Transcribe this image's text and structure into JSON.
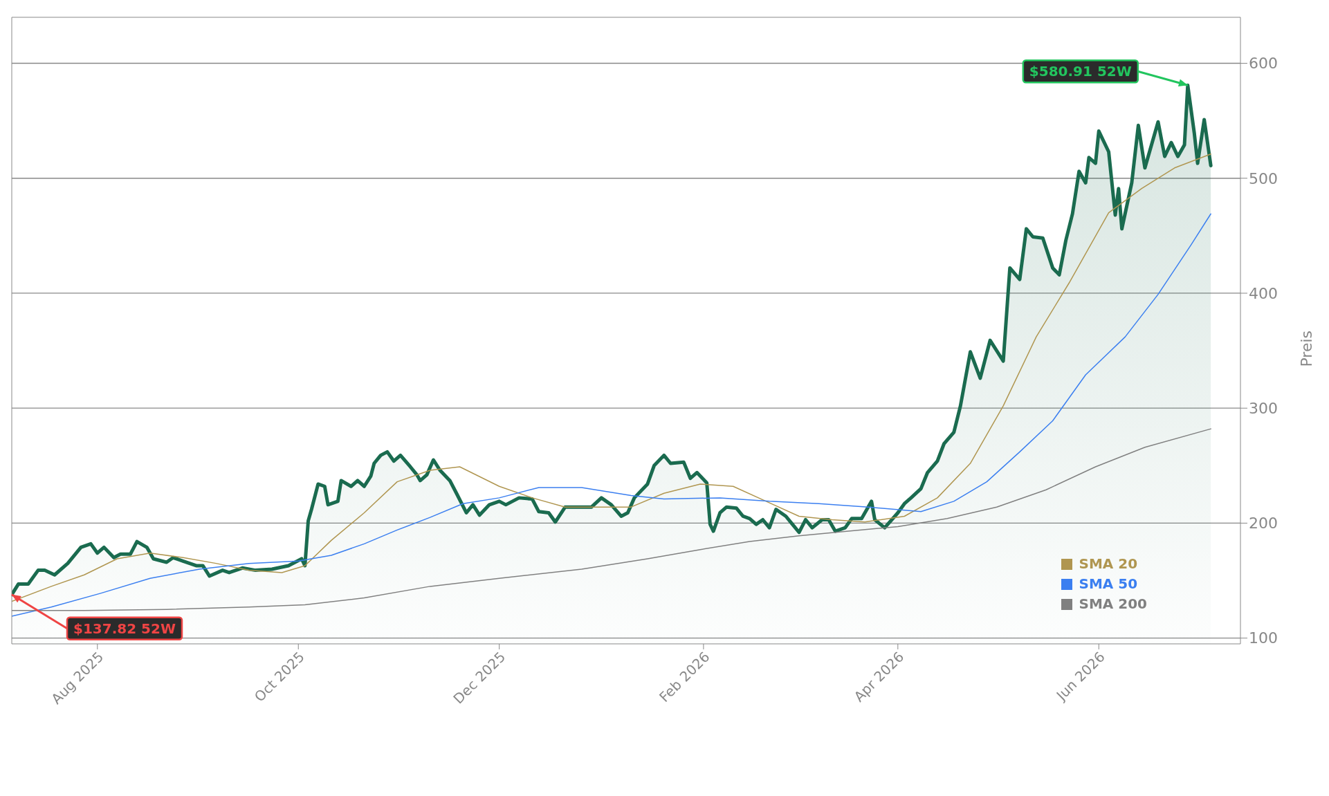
{
  "chart_data": {
    "type": "line",
    "ylabel": "Preis",
    "xlim": [
      "2025-07-06",
      "2026-07-14"
    ],
    "ylim": [
      95,
      640
    ],
    "yticks": [
      100,
      200,
      300,
      400,
      500,
      600
    ],
    "xticks": [
      {
        "value": "2025-08-01",
        "label": "Aug 2025"
      },
      {
        "value": "2025-10-01",
        "label": "Oct 2025"
      },
      {
        "value": "2025-12-01",
        "label": "Dec 2025"
      },
      {
        "value": "2026-02-01",
        "label": "Feb 2026"
      },
      {
        "value": "2026-04-01",
        "label": "Apr 2026"
      },
      {
        "value": "2026-06-01",
        "label": "Jun 2026"
      }
    ],
    "grid": "y",
    "legend": "bottom right",
    "marker": "none",
    "line_style": "solid",
    "annotations": [
      {
        "text": "$580.91 52W",
        "x": "2026-06-28",
        "y": 580.91
      },
      {
        "text": "$137.82 52W",
        "x": "2025-07-06",
        "y": 137.82
      }
    ],
    "series": [
      {
        "type": "area",
        "color": "#1a6b4f",
        "x": [
          "2025-07-06",
          "2025-07-08",
          "2025-07-11",
          "2025-07-14",
          "2025-07-16",
          "2025-07-19",
          "2025-07-23",
          "2025-07-27",
          "2025-07-30",
          "2025-08-01",
          "2025-08-03",
          "2025-08-06",
          "2025-08-08",
          "2025-08-11",
          "2025-08-13",
          "2025-08-16",
          "2025-08-18",
          "2025-08-22",
          "2025-08-24",
          "2025-08-27",
          "2025-08-31",
          "2025-09-02",
          "2025-09-04",
          "2025-09-08",
          "2025-09-10",
          "2025-09-14",
          "2025-09-18",
          "2025-09-23",
          "2025-09-28",
          "2025-10-02",
          "2025-10-03",
          "2025-10-04",
          "2025-10-05",
          "2025-10-07",
          "2025-10-09",
          "2025-10-10",
          "2025-10-13",
          "2025-10-14",
          "2025-10-17",
          "2025-10-19",
          "2025-10-21",
          "2025-10-23",
          "2025-10-24",
          "2025-10-26",
          "2025-10-28",
          "2025-10-30",
          "2025-11-01",
          "2025-11-04",
          "2025-11-06",
          "2025-11-07",
          "2025-11-09",
          "2025-11-11",
          "2025-11-13",
          "2025-11-16",
          "2025-11-18",
          "2025-11-21",
          "2025-11-23",
          "2025-11-25",
          "2025-11-28",
          "2025-12-01",
          "2025-12-03",
          "2025-12-07",
          "2025-12-11",
          "2025-12-13",
          "2025-12-16",
          "2025-12-18",
          "2025-12-21",
          "2025-12-29",
          "2026-01-01",
          "2026-01-04",
          "2026-01-07",
          "2026-01-09",
          "2026-01-11",
          "2026-01-15",
          "2026-01-17",
          "2026-01-20",
          "2026-01-22",
          "2026-01-26",
          "2026-01-28",
          "2026-01-30",
          "2026-02-02",
          "2026-02-03",
          "2026-02-04",
          "2026-02-06",
          "2026-02-08",
          "2026-02-11",
          "2026-02-13",
          "2026-02-15",
          "2026-02-17",
          "2026-02-19",
          "2026-02-21",
          "2026-02-23",
          "2026-02-26",
          "2026-02-28",
          "2026-03-02",
          "2026-03-04",
          "2026-03-06",
          "2026-03-09",
          "2026-03-11",
          "2026-03-13",
          "2026-03-16",
          "2026-03-18",
          "2026-03-21",
          "2026-03-24",
          "2026-03-25",
          "2026-03-28",
          "2026-04-01",
          "2026-04-03",
          "2026-04-05",
          "2026-04-08",
          "2026-04-10",
          "2026-04-13",
          "2026-04-15",
          "2026-04-18",
          "2026-04-20",
          "2026-04-23",
          "2026-04-26",
          "2026-04-29",
          "2026-05-03",
          "2026-05-05",
          "2026-05-08",
          "2026-05-10",
          "2026-05-12",
          "2026-05-15",
          "2026-05-18",
          "2026-05-20",
          "2026-05-22",
          "2026-05-24",
          "2026-05-26",
          "2026-05-28",
          "2026-05-29",
          "2026-05-31",
          "2026-06-01",
          "2026-06-04",
          "2026-06-06",
          "2026-06-07",
          "2026-06-08",
          "2026-06-11",
          "2026-06-13",
          "2026-06-15",
          "2026-06-17",
          "2026-06-19",
          "2026-06-21",
          "2026-06-23",
          "2026-06-25",
          "2026-06-27",
          "2026-06-28",
          "2026-06-30",
          "2026-07-01",
          "2026-07-03",
          "2026-07-05"
        ],
        "values": [
          137.82,
          147,
          147,
          159,
          159,
          155,
          165,
          179,
          182,
          174,
          179,
          170,
          173,
          173,
          184,
          179,
          169,
          166,
          170,
          167,
          163,
          163,
          154,
          159,
          157,
          161,
          159,
          160,
          163,
          169,
          163,
          202,
          212,
          234,
          232,
          216,
          219,
          237,
          232,
          237,
          232,
          241,
          252,
          259,
          262,
          254,
          259,
          249,
          242,
          237,
          242,
          255,
          246,
          237,
          226,
          209,
          216,
          207,
          216,
          219,
          216,
          222,
          221,
          210,
          209,
          201,
          214,
          214,
          222,
          216,
          206,
          209,
          222,
          234,
          250,
          259,
          252,
          253,
          239,
          244,
          235,
          199,
          193,
          209,
          214,
          213,
          206,
          204,
          199,
          203,
          196,
          212,
          206,
          199,
          192,
          203,
          196,
          203,
          203,
          193,
          196,
          204,
          204,
          219,
          203,
          196,
          209,
          217,
          222,
          230,
          244,
          254,
          269,
          279,
          302,
          349,
          326,
          359,
          341,
          422,
          412,
          456,
          449,
          448,
          422,
          416,
          446,
          469,
          506,
          496,
          518,
          513,
          541,
          523,
          468,
          491,
          456,
          496,
          546,
          509,
          529,
          549,
          519,
          531,
          519,
          529,
          580.91,
          539,
          513,
          551,
          511
        ]
      },
      {
        "name": "SMA 20",
        "color": "#b09650",
        "x": [
          "2025-07-06",
          "2025-07-18",
          "2025-07-28",
          "2025-08-07",
          "2025-08-17",
          "2025-08-27",
          "2025-09-06",
          "2025-09-16",
          "2025-09-26",
          "2025-10-03",
          "2025-10-11",
          "2025-10-21",
          "2025-10-31",
          "2025-11-10",
          "2025-11-19",
          "2025-12-01",
          "2025-12-11",
          "2025-12-21",
          "2025-12-31",
          "2026-01-10",
          "2026-01-20",
          "2026-01-31",
          "2026-02-10",
          "2026-02-20",
          "2026-03-02",
          "2026-03-12",
          "2026-03-22",
          "2026-04-03",
          "2026-04-13",
          "2026-04-23",
          "2026-05-03",
          "2026-05-13",
          "2026-05-23",
          "2026-06-04",
          "2026-06-14",
          "2026-06-24",
          "2026-07-05"
        ],
        "values": [
          132,
          145,
          155,
          169,
          174,
          170,
          165,
          159,
          157,
          163,
          185,
          209,
          236,
          246,
          249,
          232,
          222,
          214,
          214,
          214,
          226,
          234,
          232,
          219,
          206,
          203,
          201,
          206,
          222,
          252,
          302,
          362,
          409,
          470,
          491,
          509,
          521
        ]
      },
      {
        "name": "SMA 50",
        "color": "#3b7ff0",
        "x": [
          "2025-07-06",
          "2025-07-18",
          "2025-08-02",
          "2025-08-17",
          "2025-09-01",
          "2025-09-16",
          "2025-10-01",
          "2025-10-11",
          "2025-10-21",
          "2025-10-31",
          "2025-11-10",
          "2025-11-20",
          "2025-12-01",
          "2025-12-13",
          "2025-12-26",
          "2026-01-10",
          "2026-01-20",
          "2026-02-06",
          "2026-02-21",
          "2026-03-08",
          "2026-03-23",
          "2026-04-08",
          "2026-04-18",
          "2026-04-28",
          "2026-05-08",
          "2026-05-18",
          "2026-05-28",
          "2026-06-09",
          "2026-06-19",
          "2026-06-29",
          "2026-07-05"
        ],
        "values": [
          119,
          127,
          139,
          152,
          160,
          165,
          167,
          172,
          182,
          194,
          205,
          217,
          222,
          231,
          231,
          224,
          221,
          222,
          219,
          217,
          214,
          210,
          219,
          236,
          262,
          289,
          329,
          362,
          399,
          442,
          469
        ]
      },
      {
        "name": "SMA 200",
        "color": "#808080",
        "x": [
          "2025-07-06",
          "2025-07-28",
          "2025-08-22",
          "2025-09-16",
          "2025-10-03",
          "2025-10-21",
          "2025-11-10",
          "2025-12-01",
          "2025-12-26",
          "2026-01-15",
          "2026-01-31",
          "2026-02-15",
          "2026-03-02",
          "2026-03-17",
          "2026-04-01",
          "2026-04-16",
          "2026-05-01",
          "2026-05-16",
          "2026-05-31",
          "2026-06-15",
          "2026-07-05"
        ],
        "values": [
          124,
          124,
          125,
          127,
          129,
          135,
          145,
          152,
          160,
          169,
          177,
          184,
          189,
          193,
          197,
          204,
          214,
          229,
          249,
          266,
          282
        ]
      }
    ]
  }
}
